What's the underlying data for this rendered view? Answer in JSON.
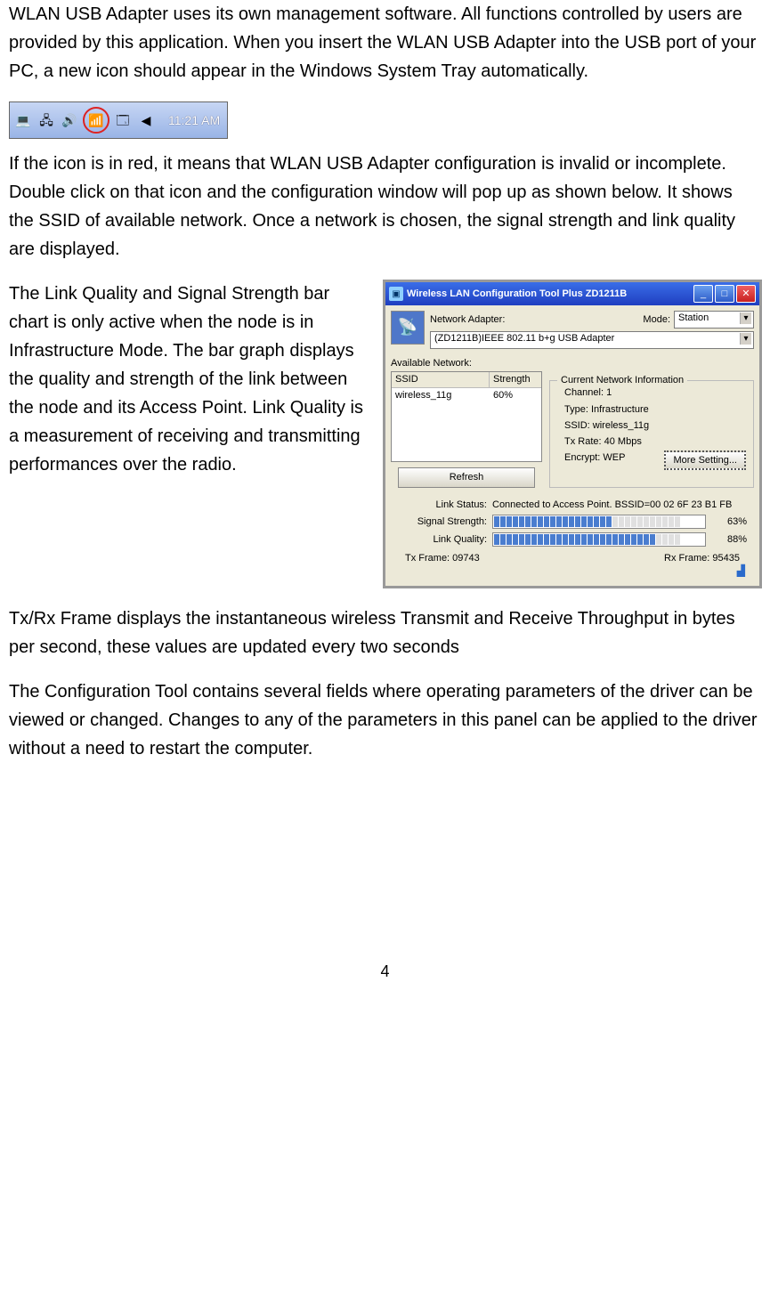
{
  "paragraph1": "WLAN USB Adapter uses its own management software. All functions controlled by users are provided by this application. When you insert the WLAN USB Adapter into the USB port of your PC, a new icon should appear in the Windows System Tray automatically.",
  "systray": {
    "icons": [
      "monitors",
      "net",
      "vol",
      "antenna",
      "app",
      "arrow"
    ],
    "clock": "11:21 AM"
  },
  "paragraph2": "If the icon is in red, it means that WLAN USB Adapter configuration is invalid or incomplete. Double click on that icon and the configuration window will pop up as shown below. It shows the SSID of available network. Once a network is chosen, the signal strength and link quality are displayed.",
  "paragraph3": "The Link Quality and Signal Strength bar chart is only active when the node is in Infrastructure Mode. The bar graph displays the quality and strength of the link between the node and its Access Point. Link Quality is a measurement of receiving and transmitting performances over the radio.",
  "configWin": {
    "title": "Wireless LAN Configuration Tool Plus   ZD1211B",
    "adapterLabel": "Network Adapter:",
    "modeLabel": "Mode:",
    "modeValue": "Station",
    "adapterValue": "(ZD1211B)IEEE 802.11 b+g USB Adapter",
    "availableLabel": "Available Network:",
    "gridHead": {
      "c1": "SSID",
      "c2": "Strength"
    },
    "gridRow": {
      "c1": "wireless_11g",
      "c2": "60%"
    },
    "refreshBtn": "Refresh",
    "currentInfoLegend": "Current Network Information",
    "channel": "Channel: 1",
    "type": "Type: Infrastructure",
    "ssid": "SSID: wireless_11g",
    "txrate": "Tx Rate: 40 Mbps",
    "encrypt": "Encrypt: WEP",
    "moreBtn": "More Setting...",
    "linkStatusLabel": "Link Status:",
    "linkStatusValue": "Connected to Access Point. BSSID=00 02 6F 23 B1 FB",
    "signalLabel": "Signal Strength:",
    "signalPct": "63%",
    "signalSegments": 30,
    "signalOn": 19,
    "linkQLabel": "Link Quality:",
    "linkQPct": "88%",
    "linkQSegments": 30,
    "linkQOn": 26,
    "txFrame": "Tx Frame:  09743",
    "rxFrame": "Rx Frame: 95435",
    "barColor": "#4a7dcf",
    "bgColor": "#ece9d8"
  },
  "paragraph4": "Tx/Rx Frame displays the instantaneous wireless Transmit and Receive Throughput in bytes per second, these values are updated every two seconds",
  "paragraph5": "The Configuration Tool contains several fields where operating parameters of the driver can be viewed or changed. Changes to any of the parameters in this panel can be applied to the driver without a need to restart the computer.",
  "pageNumber": "4"
}
